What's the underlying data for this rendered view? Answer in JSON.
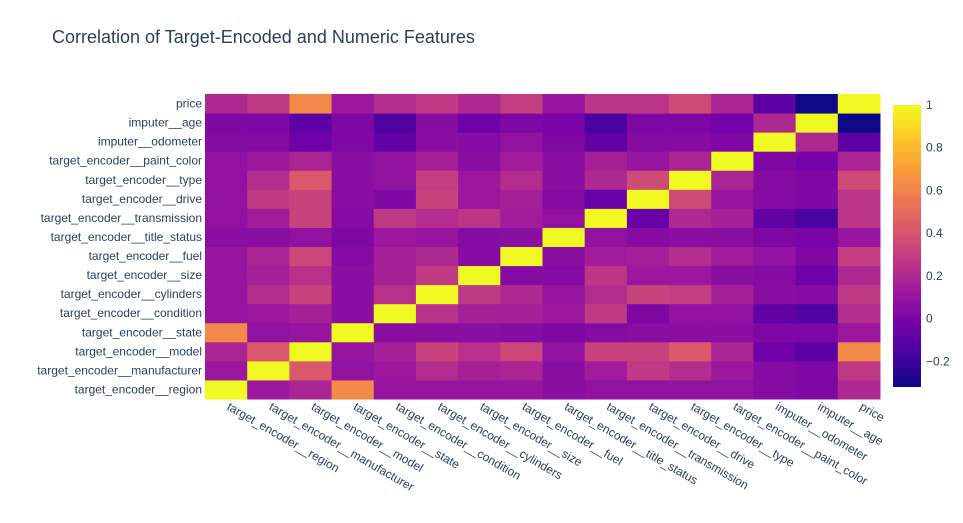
{
  "chart_data": {
    "type": "heatmap",
    "title": "Correlation of Target-Encoded and Numeric Features",
    "x_labels": [
      "target_encoder__region",
      "target_encoder__manufacturer",
      "target_encoder__model",
      "target_encoder__state",
      "target_encoder__condition",
      "target_encoder__cylinders",
      "target_encoder__size",
      "target_encoder__fuel",
      "target_encoder__title_status",
      "target_encoder__transmission",
      "target_encoder__drive",
      "target_encoder__type",
      "target_encoder__paint_color",
      "imputer__odometer",
      "imputer__age",
      "price"
    ],
    "y_labels": [
      "target_encoder__region",
      "target_encoder__manufacturer",
      "target_encoder__model",
      "target_encoder__state",
      "target_encoder__condition",
      "target_encoder__cylinders",
      "target_encoder__size",
      "target_encoder__fuel",
      "target_encoder__title_status",
      "target_encoder__transmission",
      "target_encoder__drive",
      "target_encoder__type",
      "target_encoder__paint_color",
      "imputer__odometer",
      "imputer__age",
      "price"
    ],
    "z": [
      [
        1.0,
        0.12,
        0.18,
        0.62,
        0.1,
        0.1,
        0.1,
        0.1,
        0.06,
        0.08,
        0.08,
        0.08,
        0.08,
        0.04,
        0.02,
        0.2
      ],
      [
        0.12,
        1.0,
        0.42,
        0.08,
        0.12,
        0.22,
        0.16,
        0.18,
        0.06,
        0.14,
        0.28,
        0.22,
        0.12,
        0.04,
        0.02,
        0.28
      ],
      [
        0.18,
        0.42,
        1.0,
        0.1,
        0.16,
        0.32,
        0.24,
        0.34,
        0.08,
        0.32,
        0.32,
        0.42,
        0.18,
        -0.04,
        -0.1,
        0.62
      ],
      [
        0.62,
        0.08,
        0.1,
        1.0,
        0.06,
        0.06,
        0.06,
        0.04,
        0.02,
        0.04,
        0.06,
        0.06,
        0.06,
        0.02,
        0.02,
        0.12
      ],
      [
        0.1,
        0.12,
        0.16,
        0.06,
        1.0,
        0.24,
        0.16,
        0.16,
        0.12,
        0.28,
        0.02,
        0.08,
        0.08,
        -0.08,
        -0.14,
        0.22
      ],
      [
        0.1,
        0.22,
        0.32,
        0.06,
        0.24,
        1.0,
        0.28,
        0.2,
        0.1,
        0.22,
        0.32,
        0.3,
        0.16,
        0.06,
        0.04,
        0.28
      ],
      [
        0.1,
        0.16,
        0.24,
        0.06,
        0.16,
        0.28,
        1.0,
        0.04,
        0.04,
        0.26,
        0.12,
        0.12,
        0.06,
        0.04,
        -0.04,
        0.2
      ],
      [
        0.1,
        0.18,
        0.34,
        0.04,
        0.16,
        0.2,
        0.04,
        1.0,
        0.06,
        0.14,
        0.16,
        0.22,
        0.14,
        0.08,
        0.02,
        0.3
      ],
      [
        0.06,
        0.06,
        0.08,
        0.02,
        0.12,
        0.1,
        0.04,
        0.06,
        1.0,
        0.08,
        0.04,
        0.06,
        0.06,
        0.02,
        0.0,
        0.1
      ],
      [
        0.08,
        0.14,
        0.32,
        0.04,
        0.28,
        0.22,
        0.26,
        0.14,
        0.08,
        1.0,
        -0.06,
        0.2,
        0.16,
        -0.08,
        -0.16,
        0.26
      ],
      [
        0.08,
        0.28,
        0.32,
        0.06,
        0.02,
        0.32,
        0.12,
        0.16,
        0.04,
        -0.06,
        1.0,
        0.36,
        0.1,
        0.04,
        0.02,
        0.26
      ],
      [
        0.08,
        0.22,
        0.42,
        0.06,
        0.08,
        0.3,
        0.12,
        0.22,
        0.06,
        0.2,
        0.36,
        1.0,
        0.18,
        0.04,
        0.02,
        0.36
      ],
      [
        0.08,
        0.12,
        0.18,
        0.06,
        0.08,
        0.16,
        0.06,
        0.14,
        0.06,
        0.16,
        0.1,
        0.18,
        1.0,
        0.02,
        -0.02,
        0.18
      ],
      [
        0.04,
        0.04,
        -0.04,
        0.02,
        -0.08,
        0.06,
        0.04,
        0.08,
        0.02,
        -0.08,
        0.04,
        0.04,
        0.02,
        1.0,
        0.2,
        -0.1
      ],
      [
        0.02,
        0.02,
        -0.1,
        0.02,
        -0.14,
        0.04,
        -0.04,
        0.02,
        0.0,
        -0.16,
        0.02,
        0.02,
        -0.02,
        0.2,
        1.0,
        -0.32
      ],
      [
        0.2,
        0.28,
        0.62,
        0.12,
        0.22,
        0.28,
        0.2,
        0.3,
        0.1,
        0.26,
        0.26,
        0.36,
        0.18,
        -0.1,
        -0.32,
        1.0
      ]
    ],
    "zmin": -0.32,
    "zmax": 1.0,
    "colorscale": "plasma",
    "colorbar": {
      "ticks": [
        -0.2,
        0,
        0.2,
        0.4,
        0.6,
        0.8,
        1
      ]
    }
  },
  "colors": {
    "title": "#2a3f5f",
    "tick": "#2a3f5f",
    "plasma": [
      "#0d0887",
      "#46039f",
      "#7201a8",
      "#9c179e",
      "#bd3786",
      "#d8576b",
      "#ed7953",
      "#fb9f3a",
      "#fdca26",
      "#f0f921"
    ]
  }
}
